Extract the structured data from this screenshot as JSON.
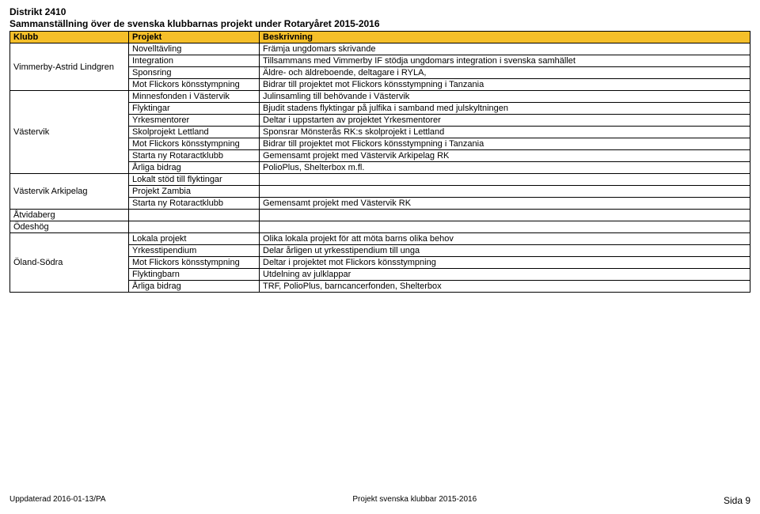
{
  "header": {
    "district": "Distrikt 2410",
    "subtitle": "Sammanställning över de svenska klubbarnas projekt under Rotaryåret 2015-2016"
  },
  "columns": [
    "Klubb",
    "Projekt",
    "Beskrivning"
  ],
  "header_bg": "#f5bf2a",
  "rows": [
    {
      "club": "Vimmerby-Astrid Lindgren",
      "rowspan": 4,
      "projekt": "Novelltävling",
      "besk": "Främja ungdomars skrivande"
    },
    {
      "projekt": "Integration",
      "besk": "Tillsammans med Vimmerby IF stödja ungdomars integration i svenska samhället"
    },
    {
      "projekt": "Sponsring",
      "besk": "Äldre- och äldreboende, deltagare i RYLA,"
    },
    {
      "projekt": "Mot Flickors könsstympning",
      "besk": "Bidrar till projektet mot Flickors könsstympning i Tanzania"
    },
    {
      "club": "Västervik",
      "rowspan": 7,
      "projekt": "Minnesfonden i Västervik",
      "besk": "Julinsamling till behövande i Västervik"
    },
    {
      "projekt": "Flyktingar",
      "besk": "Bjudit stadens flyktingar på julfika i samband med julskyltningen"
    },
    {
      "projekt": "Yrkesmentorer",
      "besk": "Deltar i uppstarten av projektet Yrkesmentorer"
    },
    {
      "projekt": "Skolprojekt Lettland",
      "besk": "Sponsrar Mönsterås RK:s skolprojekt i Lettland"
    },
    {
      "projekt": "Mot Flickors könsstympning",
      "besk": "Bidrar till projektet mot Flickors könsstympning i Tanzania"
    },
    {
      "projekt": "Starta ny Rotaractklubb",
      "besk": "Gemensamt projekt med Västervik Arkipelag RK"
    },
    {
      "projekt": "Årliga bidrag",
      "besk": "PolioPlus, Shelterbox m.fl."
    },
    {
      "club": "Västervik Arkipelag",
      "rowspan": 3,
      "projekt": "Lokalt stöd till flyktingar",
      "besk": ""
    },
    {
      "projekt": "Projekt Zambia",
      "besk": ""
    },
    {
      "projekt": "Starta ny Rotaractklubb",
      "besk": "Gemensamt projekt med Västervik RK"
    },
    {
      "club": "Åtvidaberg",
      "rowspan": 1,
      "projekt": "",
      "besk": ""
    },
    {
      "club": "Ödeshög",
      "rowspan": 1,
      "projekt": "",
      "besk": ""
    },
    {
      "club": "Öland-Södra",
      "rowspan": 5,
      "projekt": "Lokala projekt",
      "besk": "Olika lokala projekt för att möta barns olika behov"
    },
    {
      "projekt": "Yrkesstipendium",
      "besk": "Delar årligen ut yrkesstipendium till unga"
    },
    {
      "projekt": "Mot Flickors könsstympning",
      "besk": "Deltar i projektet mot Flickors könsstympning"
    },
    {
      "projekt": "Flyktingbarn",
      "besk": "Utdelning av julklappar"
    },
    {
      "projekt": "Årliga bidrag",
      "besk": "TRF, PolioPlus, barncancerfonden, Shelterbox"
    }
  ],
  "footer": {
    "left": "Uppdaterad 2016-01-13/PA",
    "center": "Projekt svenska klubbar 2015-2016",
    "right": "Sida 9"
  }
}
